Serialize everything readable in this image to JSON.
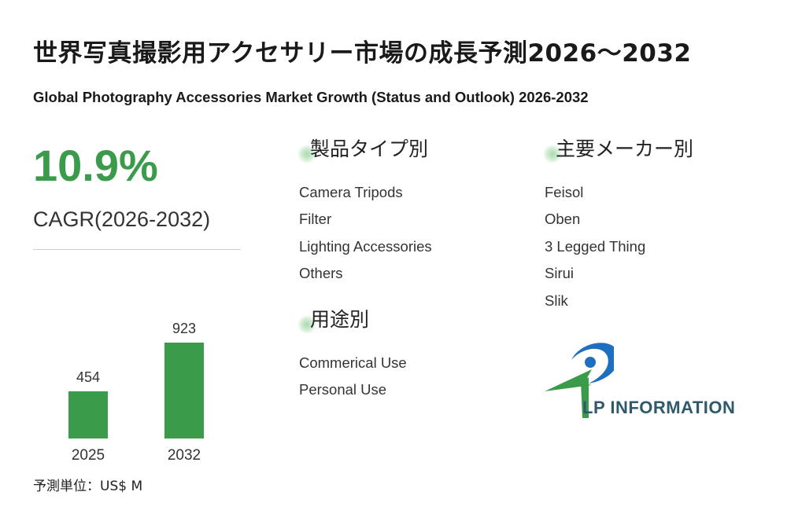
{
  "header": {
    "title_jp": "世界写真撮影用アクセサリー市場の成長予測2026～2032",
    "title_en": "Global Photography Accessories Market Growth (Status and Outlook) 2026-2032"
  },
  "cagr": {
    "value": "10.9%",
    "label": "CAGR(2026-2032)"
  },
  "unit_label": "予測単位：US$ M",
  "colors": {
    "accent": "#3a9b4b",
    "bar": "#3a9b4b",
    "logo_blue": "#1f6fc1",
    "logo_green": "#3a9b4b",
    "logo_text": "#2e5a6b"
  },
  "chart_data": {
    "type": "bar",
    "categories": [
      "2025",
      "2032"
    ],
    "values": [
      454,
      923
    ],
    "data_labels": [
      "454",
      "923"
    ],
    "title": "",
    "xlabel": "",
    "ylabel": "",
    "ylim": [
      0,
      923
    ],
    "grid": false,
    "legend": "none"
  },
  "segments": {
    "by_type": {
      "heading": "製品タイプ別",
      "items": [
        "Camera Tripods",
        "Filter",
        "Lighting Accessories",
        "Others"
      ]
    },
    "by_application": {
      "heading": "用途別",
      "items": [
        "Commerical Use",
        "Personal Use"
      ]
    },
    "by_manufacturer": {
      "heading": "主要メーカー別",
      "items": [
        "Feisol",
        "Oben",
        "3 Legged Thing",
        "Sirui",
        "Slik"
      ]
    }
  },
  "logo": {
    "text": "LP INFORMATION",
    "icon": "lp-information-logo-icon"
  }
}
